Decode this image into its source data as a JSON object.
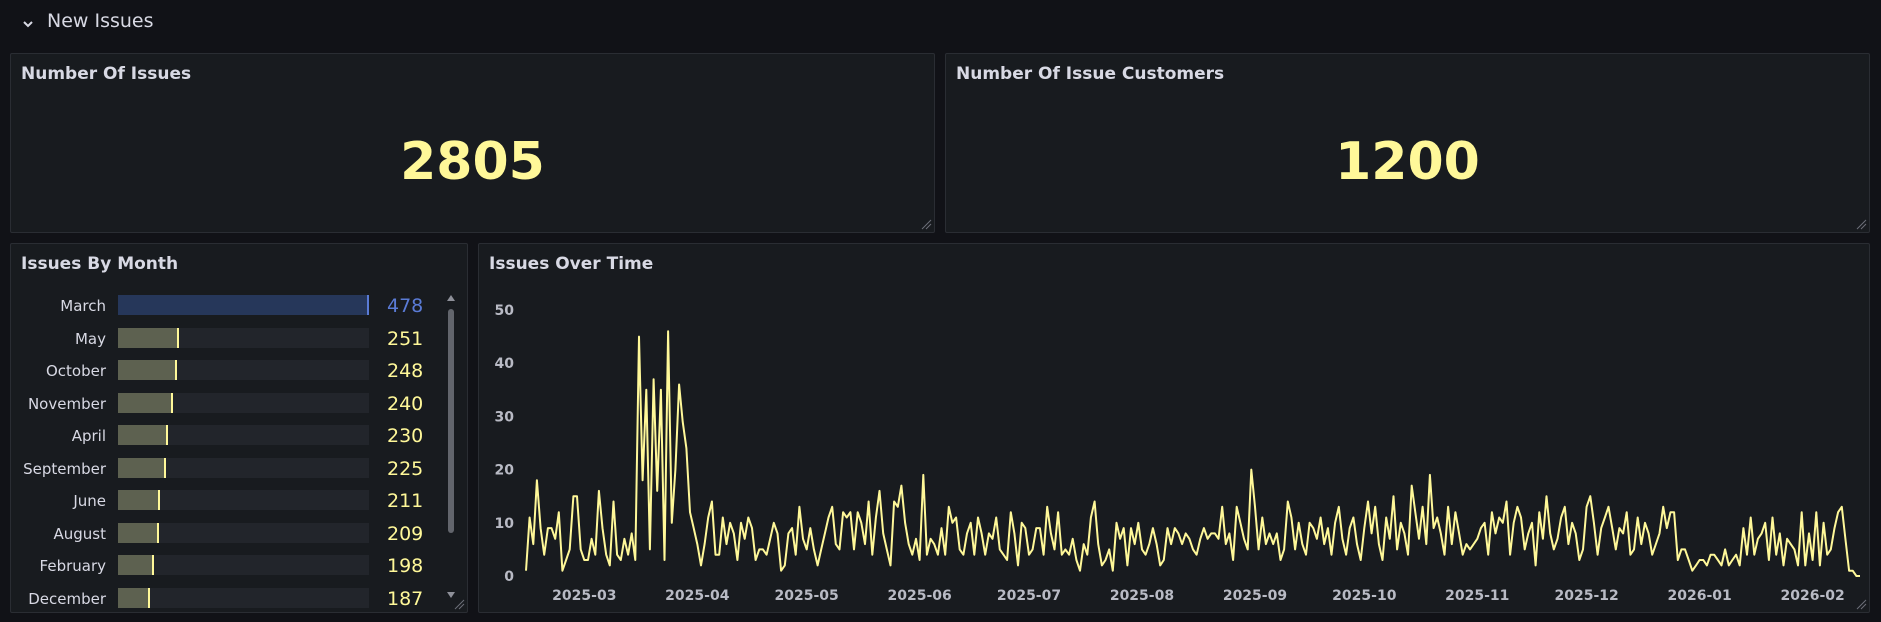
{
  "row": {
    "title": "New Issues"
  },
  "stat_issues": {
    "title": "Number Of Issues",
    "value": "2805"
  },
  "stat_customers": {
    "title": "Number Of Issue Customers",
    "value": "1200"
  },
  "bargauge": {
    "title": "Issues By Month",
    "max": 478,
    "items": [
      {
        "label": "March",
        "value": "478"
      },
      {
        "label": "May",
        "value": "251"
      },
      {
        "label": "October",
        "value": "248"
      },
      {
        "label": "November",
        "value": "240"
      },
      {
        "label": "April",
        "value": "230"
      },
      {
        "label": "September",
        "value": "225"
      },
      {
        "label": "June",
        "value": "211"
      },
      {
        "label": "August",
        "value": "209"
      },
      {
        "label": "February",
        "value": "198"
      },
      {
        "label": "December",
        "value": "187"
      }
    ],
    "colors": {
      "top": "#5a7bd6",
      "top_fill": "#26375a",
      "other": "#fff899",
      "other_fill": "#5d6150"
    }
  },
  "timeseries": {
    "title": "Issues Over Time",
    "color": "#fff899"
  },
  "chart_data": {
    "type": "line",
    "title": "Issues Over Time",
    "xlabel": "",
    "ylabel": "",
    "ylim": [
      0,
      50
    ],
    "yticks": [
      "0",
      "10",
      "20",
      "30",
      "40",
      "50"
    ],
    "xticks": [
      "2025-03",
      "2025-04",
      "2025-05",
      "2025-06",
      "2025-07",
      "2025-08",
      "2025-09",
      "2025-10",
      "2025-11",
      "2025-12",
      "2026-01",
      "2026-02"
    ],
    "x_start": "2025-02-13",
    "grid": false,
    "series": [
      {
        "values": [
          1,
          11,
          6,
          18,
          9,
          4,
          9,
          9,
          7,
          12,
          1,
          3,
          5,
          15,
          15,
          5,
          3,
          3,
          7,
          4,
          16,
          9,
          4,
          2,
          14,
          4,
          3,
          7,
          4,
          8,
          3,
          45,
          18,
          35,
          5,
          37,
          16,
          35,
          3,
          46,
          10,
          20,
          36,
          29,
          24,
          12,
          9,
          6,
          2,
          6,
          11,
          14,
          4,
          4,
          11,
          6,
          10,
          8,
          3,
          10,
          7,
          11,
          9,
          3,
          5,
          5,
          4,
          7,
          10,
          8,
          1,
          2,
          8,
          9,
          4,
          13,
          7,
          5,
          9,
          5,
          2,
          5,
          8,
          11,
          13,
          6,
          5,
          12,
          11,
          12,
          5,
          12,
          10,
          6,
          14,
          4,
          11,
          16,
          8,
          5,
          2,
          14,
          13,
          17,
          10,
          6,
          4,
          7,
          3,
          19,
          4,
          7,
          6,
          4,
          9,
          4,
          13,
          10,
          11,
          5,
          4,
          8,
          10,
          4,
          11,
          8,
          4,
          8,
          7,
          11,
          5,
          4,
          3,
          12,
          8,
          2,
          10,
          9,
          4,
          5,
          9,
          9,
          4,
          13,
          8,
          5,
          12,
          4,
          5,
          4,
          7,
          3,
          1,
          6,
          4,
          11,
          14,
          6,
          2,
          3,
          5,
          1,
          10,
          7,
          9,
          2,
          9,
          6,
          10,
          5,
          4,
          6,
          9,
          6,
          2,
          3,
          9,
          6,
          9,
          8,
          6,
          8,
          7,
          5,
          4,
          7,
          9,
          7,
          8,
          8,
          7,
          13,
          6,
          8,
          3,
          13,
          10,
          7,
          5,
          20,
          13,
          5,
          11,
          6,
          8,
          6,
          8,
          3,
          5,
          14,
          11,
          5,
          10,
          6,
          4,
          10,
          9,
          7,
          11,
          6,
          9,
          4,
          10,
          13,
          7,
          4,
          9,
          11,
          6,
          3,
          9,
          14,
          8,
          13,
          6,
          3,
          11,
          7,
          15,
          5,
          10,
          8,
          4,
          17,
          12,
          7,
          13,
          6,
          19,
          9,
          11,
          8,
          4,
          13,
          6,
          12,
          8,
          4,
          6,
          5,
          6,
          7,
          9,
          10,
          4,
          12,
          8,
          11,
          10,
          14,
          4,
          10,
          13,
          11,
          5,
          8,
          10,
          2,
          12,
          7,
          15,
          8,
          5,
          7,
          11,
          13,
          6,
          10,
          8,
          3,
          5,
          13,
          15,
          10,
          4,
          9,
          11,
          13,
          9,
          5,
          9,
          8,
          12,
          4,
          5,
          11,
          6,
          10,
          8,
          4,
          6,
          8,
          13,
          9,
          12,
          12,
          3,
          5,
          5,
          3,
          1,
          2,
          3,
          3,
          2,
          4,
          4,
          3,
          2,
          5,
          2,
          3,
          4,
          2,
          9,
          4,
          11,
          4,
          7,
          8,
          10,
          3,
          11,
          4,
          8,
          2,
          7,
          6,
          5,
          2,
          12,
          2,
          8,
          3,
          12,
          2,
          10,
          4,
          5,
          9,
          12,
          13,
          7,
          1,
          1,
          0,
          0
        ]
      }
    ]
  }
}
